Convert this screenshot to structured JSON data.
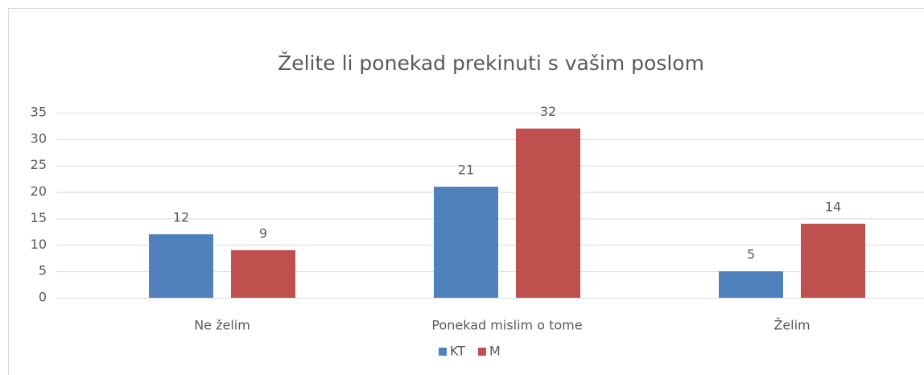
{
  "chart_data": {
    "type": "bar",
    "title": "Želite li ponekad prekinuti s vašim poslom",
    "categories": [
      "Ne želim",
      "Ponekad mislim o tome",
      "Želim"
    ],
    "series": [
      {
        "name": "KT",
        "color": "#4f81bd",
        "values": [
          12,
          21,
          5
        ]
      },
      {
        "name": "M",
        "color": "#c0504d",
        "values": [
          9,
          32,
          14
        ]
      }
    ],
    "ylim": [
      0,
      35
    ],
    "yticks": [
      0,
      5,
      10,
      15,
      20,
      25,
      30,
      35
    ],
    "grid": true,
    "legend": "bottom"
  }
}
